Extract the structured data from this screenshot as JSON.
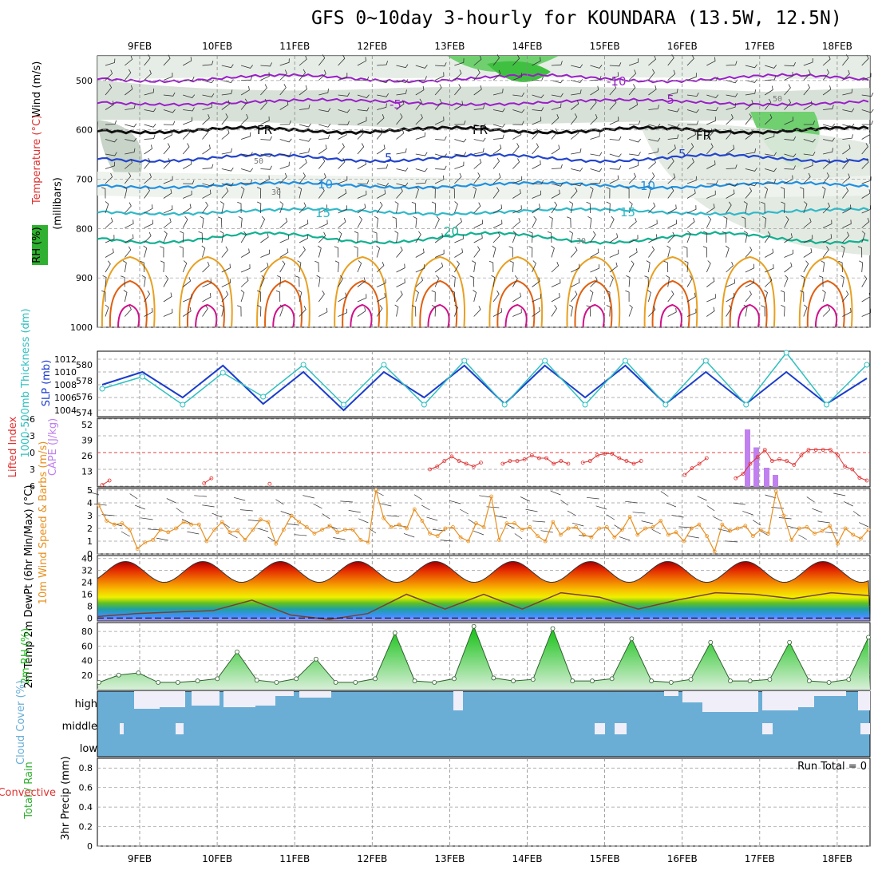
{
  "title": "GFS 0~10day 3-hourly for KOUNDARA (13.5W, 12.5N)",
  "dates": [
    "9FEB",
    "10FEB",
    "11FEB",
    "12FEB",
    "13FEB",
    "14FEB",
    "15FEB",
    "16FEB",
    "17FEB",
    "18FEB"
  ],
  "colors": {
    "purple": "#9a1fc8",
    "blue": "#2244cc",
    "cyan": "#30b8c8",
    "teal": "#10b090",
    "orange": "#e8a020",
    "dorange": "#e06010",
    "magenta": "#d0108a",
    "cape": "#c080f0",
    "lifted": "#e03030",
    "cloud": "#6aaed6",
    "rh_green": "#20c020",
    "slp": "#1a3ccc",
    "thick": "#30c0c0",
    "wind10": "#e89020"
  },
  "upper_panel": {
    "y_label_wind": "Wind (m/s)",
    "y_label_temp": "Temperature (°C)",
    "y_label_rh": "RH (%)",
    "y_label_mb": "(millibars)",
    "pressure_ticks": [
      "500",
      "600",
      "700",
      "800",
      "900",
      "1000"
    ],
    "contour_labels": [
      "-10",
      "-5",
      "FR",
      "5",
      "10",
      "15",
      "20"
    ],
    "rh_labels": [
      "50",
      "30"
    ]
  },
  "panels": {
    "thickness": {
      "y_label_left": "1000-500mb Thickness (dm)",
      "y_label_right": "SLP (mb)",
      "left_ticks": [
        "580",
        "578",
        "576",
        "574"
      ],
      "right_ticks": [
        "1012",
        "1010",
        "1008",
        "1006",
        "1004"
      ]
    },
    "lifted": {
      "y_label_left": "Lifted Index",
      "y_label_right": "CAPE (J/kg)",
      "left_ticks": [
        "-6",
        "-3",
        "0",
        "3",
        "6"
      ],
      "right_ticks": [
        "52",
        "39",
        "26",
        "13"
      ]
    },
    "wind10": {
      "y_label": "10m Wind Speed & Barbs (m/s)",
      "ticks": [
        "5",
        "4",
        "3",
        "2",
        "1",
        "0"
      ]
    },
    "temp2m": {
      "y_label": "2m Temp 2m DewPt (6hr Min/Max) (°C)",
      "ticks": [
        "40",
        "32",
        "24",
        "16",
        "8",
        "0"
      ]
    },
    "rh2m": {
      "y_label": "2m RH (%)",
      "ticks": [
        "80",
        "60",
        "40",
        "20"
      ]
    },
    "cloud": {
      "y_label": "Cloud Cover (%)",
      "levels": [
        "high",
        "middle",
        "low"
      ]
    },
    "precip": {
      "y_label": "3hr Precip (mm)",
      "legend_total": "Total / Rain",
      "legend_conv": "Convective",
      "ticks": [
        "0.8",
        "0.6",
        "0.4",
        "0.2",
        "0"
      ],
      "run_total": "Run Total = 0"
    }
  },
  "chart_data": [
    {
      "type": "line",
      "title": "1000-500mb Thickness / SLP",
      "x": [
        "9FEB 00",
        "9FEB 12",
        "10FEB 00",
        "10FEB 12",
        "11FEB 00",
        "11FEB 12",
        "12FEB 00",
        "12FEB 12",
        "13FEB 00",
        "13FEB 12",
        "14FEB 00",
        "14FEB 12",
        "15FEB 00",
        "15FEB 12",
        "16FEB 00",
        "16FEB 12",
        "17FEB 00",
        "17FEB 12",
        "18FEB 00",
        "18FEB 12"
      ],
      "series": [
        {
          "name": "SLP (mb)",
          "values": [
            1008,
            1010,
            1006,
            1011,
            1005,
            1010,
            1004,
            1010,
            1006,
            1011,
            1005,
            1011,
            1006,
            1011,
            1005,
            1010,
            1005,
            1010,
            1005,
            1009
          ]
        },
        {
          "name": "1000-500mb Thickness (dm)",
          "values": [
            577,
            578.5,
            575,
            579,
            576,
            580,
            575,
            580,
            575,
            580.5,
            575,
            580.5,
            575,
            580.5,
            575,
            580.5,
            575,
            581.5,
            575,
            580
          ]
        }
      ]
    },
    {
      "type": "bar",
      "title": "CAPE (J/kg)",
      "categories": [
        "16FEB 18",
        "16FEB 21",
        "17FEB 00",
        "17FEB 03"
      ],
      "values": [
        48,
        33,
        16,
        10
      ]
    },
    {
      "type": "line",
      "title": "10m Wind Speed (m/s)",
      "values": [
        3.8,
        2.6,
        2.3,
        2.4,
        1.9,
        0.4,
        0.9,
        1.1,
        1.9,
        1.7,
        2.0,
        2.5,
        2.3,
        2.3,
        1.0,
        1.9,
        2.5,
        1.7,
        1.8,
        1.1,
        1.9,
        2.7,
        2.5,
        0.8,
        1.9,
        3.0,
        2.5,
        2.1,
        1.6,
        1.9,
        2.2,
        1.7,
        1.9,
        1.9,
        1.1,
        0.9,
        5.0,
        2.8,
        2.1,
        2.3,
        2.0,
        3.5,
        2.6,
        1.6,
        1.4,
        2.0,
        2.1,
        1.3,
        1.0,
        2.4,
        2.1,
        4.5,
        1.1,
        2.4,
        2.4,
        1.9,
        2.1,
        1.4,
        1.0,
        2.5,
        1.5,
        2.0,
        2.1,
        1.5,
        1.3,
        2.0,
        2.1,
        1.3,
        1.9,
        2.9,
        1.5,
        2.0,
        2.1,
        2.6,
        1.5,
        1.7,
        1.0,
        2.0,
        2.3,
        1.4,
        0.2,
        2.3,
        1.8,
        2.0,
        2.2,
        1.4,
        1.9,
        1.6,
        4.9,
        3.0,
        1.1,
        2.0,
        2.1,
        1.6,
        1.8,
        2.2,
        0.8,
        2.0,
        1.5,
        1.2,
        1.9
      ]
    },
    {
      "type": "area",
      "title": "2m Temp / DewPt (°C)",
      "series": [
        {
          "name": "2m Temp",
          "values": [
            24,
            38,
            24,
            38,
            24,
            38,
            24,
            38,
            24,
            38,
            24,
            38,
            24,
            38,
            24,
            38,
            24,
            38,
            24,
            38,
            24
          ]
        },
        {
          "name": "2m DewPt",
          "values": [
            1,
            3,
            4,
            5,
            12,
            2,
            -1,
            3,
            16,
            6,
            16,
            6,
            17,
            14,
            6,
            12,
            17,
            16,
            13,
            17,
            15
          ]
        }
      ]
    },
    {
      "type": "area",
      "title": "2m RH (%)",
      "values": [
        10,
        20,
        23,
        10,
        10,
        12,
        15,
        52,
        13,
        10,
        15,
        42,
        10,
        10,
        15,
        78,
        12,
        10,
        15,
        87,
        16,
        12,
        14,
        84,
        12,
        12,
        15,
        70,
        12,
        10,
        14,
        65,
        12,
        12,
        14,
        65,
        12,
        10,
        14,
        72
      ]
    },
    {
      "type": "bar",
      "title": "3hr Precip (mm)",
      "values": [
        0
      ],
      "ylim": [
        0,
        0.8
      ]
    }
  ]
}
